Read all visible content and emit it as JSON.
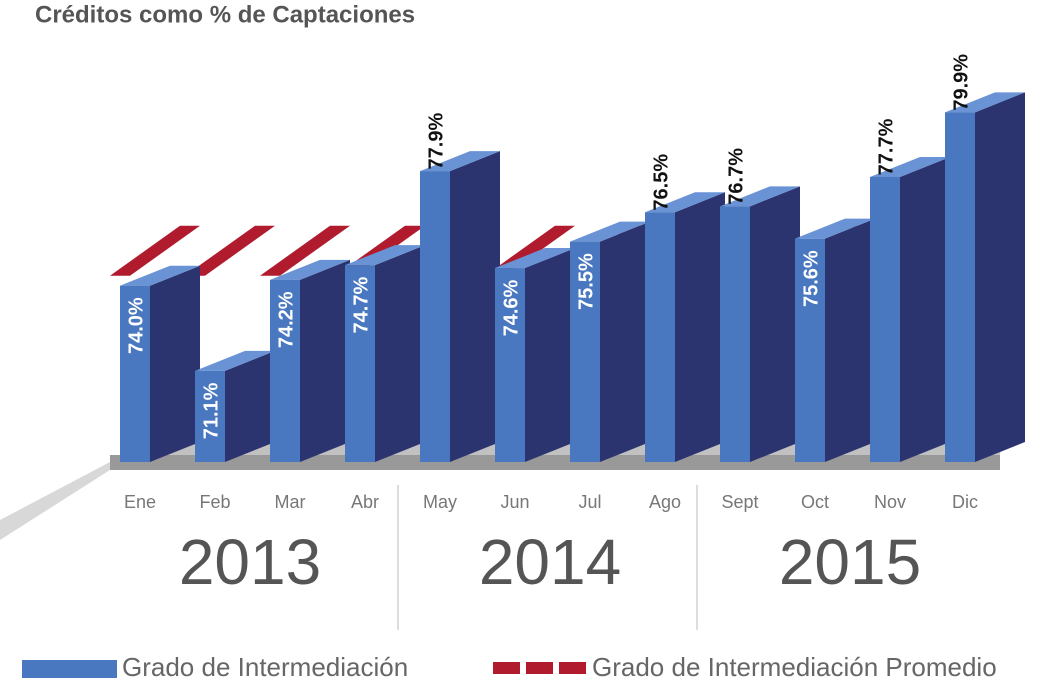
{
  "chart_data": {
    "type": "bar3d",
    "title": "Créditos como % de Captaciones",
    "categories": [
      "Ene",
      "Feb",
      "Mar",
      "Abr",
      "May",
      "Jun",
      "Jul",
      "Ago",
      "Sept",
      "Oct",
      "Nov",
      "Dic"
    ],
    "years": [
      "2013",
      "2014",
      "2015"
    ],
    "series": [
      {
        "name": "Grado de Intermediación",
        "color": "#4a78c0",
        "values": [
          74.0,
          71.1,
          74.2,
          74.7,
          77.9,
          74.6,
          75.5,
          76.5,
          76.7,
          75.6,
          77.7,
          79.9
        ],
        "value_labels": [
          "74.0%",
          "71.1%",
          "74.2%",
          "74.7%",
          "77.9%",
          "74.6%",
          "75.5%",
          "76.5%",
          "76.7%",
          "75.6%",
          "77.7%",
          "79.9%"
        ]
      },
      {
        "name": "Grado de Intermediación Promedio",
        "color": "#b01c2e",
        "style": "dashed",
        "values": [
          75.7,
          75.7,
          75.7,
          75.7,
          75.7,
          75.7,
          75.7,
          75.7,
          75.7,
          75.7,
          75.7,
          75.7
        ]
      }
    ],
    "ylim": [
      68,
      81
    ]
  }
}
